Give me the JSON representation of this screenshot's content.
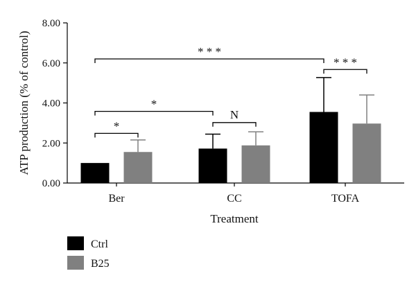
{
  "chart_data": {
    "type": "bar",
    "xlabel": "Treatment",
    "ylabel": "ATP production (% of control)",
    "ylim": [
      0,
      8
    ],
    "yticks": [
      "0.00",
      "2.00",
      "4.00",
      "6.00",
      "8.00"
    ],
    "categories": [
      "Ber",
      "CC",
      "TOFA"
    ],
    "grid": false,
    "legend_position": "bottom-left",
    "series": [
      {
        "name": "Ctrl",
        "color": "#000000",
        "values": [
          1.0,
          1.72,
          3.55
        ],
        "errors": [
          0.0,
          0.72,
          1.72
        ]
      },
      {
        "name": "B25",
        "color": "#808080",
        "values": [
          1.55,
          1.88,
          2.97
        ],
        "errors": [
          0.6,
          0.68,
          1.43
        ]
      }
    ],
    "annotations": [
      {
        "label": "*",
        "between": [
          "Ber:Ctrl",
          "Ber:B25"
        ],
        "level": 2.48
      },
      {
        "label": "N",
        "between": [
          "CC:Ctrl",
          "CC:B25"
        ],
        "level": 3.02
      },
      {
        "label": "*",
        "between": [
          "Ber:Ctrl",
          "CC:Ctrl"
        ],
        "level": 3.58
      },
      {
        "label": "***",
        "between": [
          "TOFA:Ctrl",
          "TOFA:B25"
        ],
        "level": 5.67
      },
      {
        "label": "***",
        "between": [
          "Ber:Ctrl",
          "TOFA:Ctrl"
        ],
        "level": 6.2
      }
    ]
  }
}
